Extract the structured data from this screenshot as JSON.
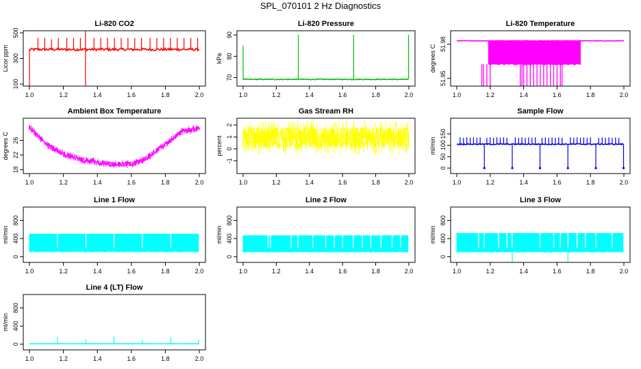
{
  "page": {
    "title": "SPL_070101  2 Hz Diagnostics"
  },
  "colors": {
    "red": "#ff0000",
    "green": "#00bb00",
    "magenta": "#ff00ff",
    "yellow": "#ffff00",
    "blue": "#0000ee",
    "cyan": "#00ffff"
  },
  "chart_data": [
    {
      "type": "line",
      "title": "Li-820 CO2",
      "ylabel": "Licor ppm",
      "color": "#ff0000",
      "xlim": [
        1.0,
        2.0
      ],
      "ylim": [
        100,
        500
      ],
      "yticks": [
        100,
        300,
        500
      ],
      "xticks": [
        "1.0",
        "1.2",
        "1.4",
        "1.6",
        "1.8",
        "2.0"
      ],
      "trend": [
        [
          1.0,
          370
        ],
        [
          2.0,
          370
        ]
      ],
      "noise": 20,
      "band": false,
      "drops": [
        1.0,
        1.33
      ],
      "spikes": [
        [
          1.05,
          460
        ],
        [
          1.09,
          460
        ],
        [
          1.13,
          450
        ],
        [
          1.17,
          460
        ],
        [
          1.22,
          460
        ],
        [
          1.26,
          460
        ],
        [
          1.3,
          460
        ],
        [
          1.33,
          560
        ],
        [
          1.38,
          460
        ],
        [
          1.42,
          460
        ],
        [
          1.46,
          460
        ],
        [
          1.5,
          460
        ],
        [
          1.54,
          460
        ],
        [
          1.58,
          460
        ],
        [
          1.62,
          460
        ],
        [
          1.66,
          460
        ],
        [
          1.71,
          460
        ],
        [
          1.75,
          460
        ],
        [
          1.79,
          460
        ],
        [
          1.83,
          460
        ],
        [
          1.87,
          460
        ],
        [
          1.91,
          460
        ],
        [
          1.95,
          460
        ],
        [
          1.99,
          460
        ]
      ]
    },
    {
      "type": "line",
      "title": "Li-820 Pressure",
      "ylabel": "kPa",
      "color": "#00bb00",
      "xlim": [
        1.0,
        2.0
      ],
      "ylim": [
        67,
        91
      ],
      "yticks": [
        70,
        80,
        90
      ],
      "xticks": [
        "1.0",
        "1.2",
        "1.4",
        "1.6",
        "1.8",
        "2.0"
      ],
      "trend": [
        [
          1.0,
          69.2
        ],
        [
          2.0,
          69.2
        ]
      ],
      "noise": 0.4,
      "band": false,
      "drops": [],
      "spikes": [
        [
          1.0,
          85
        ],
        [
          1.333,
          90
        ],
        [
          1.667,
          90
        ],
        [
          1.998,
          90
        ]
      ]
    },
    {
      "type": "band",
      "title": "Li-820 Temperature",
      "ylabel": "degrees C",
      "color": "#ff00ff",
      "xlim": [
        1.0,
        2.0
      ],
      "ylim": [
        51.945,
        51.99
      ],
      "yticks": [
        51.95,
        51.98
      ],
      "xticks": [
        "1.0",
        "1.2",
        "1.4",
        "1.6",
        "1.8",
        "2.0"
      ],
      "trend": [
        [
          1.0,
          51.983
        ],
        [
          2.0,
          51.983
        ]
      ],
      "noise": 0.0005,
      "band": false,
      "fill": [
        [
          1.19,
          1.74,
          51.9625,
          51.983
        ]
      ],
      "drops": [],
      "spikes": [],
      "lows": [
        1.15,
        1.16,
        1.18,
        1.2,
        1.38,
        1.39,
        1.4,
        1.42,
        1.44,
        1.46,
        1.48,
        1.5,
        1.52,
        1.54,
        1.56,
        1.58,
        1.6,
        1.62,
        1.63
      ]
    },
    {
      "type": "line",
      "title": "Ambient Box Temperature",
      "ylabel": "degrees C",
      "color": "#ff00ff",
      "xlim": [
        1.0,
        2.0
      ],
      "ylim": [
        17.5,
        31.5
      ],
      "yticks": [
        18,
        22,
        26
      ],
      "xticks": [
        "1.0",
        "1.2",
        "1.4",
        "1.6",
        "1.8",
        "2.0"
      ],
      "trend": [
        [
          1.0,
          29.5
        ],
        [
          1.1,
          25.0
        ],
        [
          1.2,
          22.3
        ],
        [
          1.3,
          20.8
        ],
        [
          1.4,
          20.0
        ],
        [
          1.5,
          19.4
        ],
        [
          1.6,
          19.6
        ],
        [
          1.65,
          20.2
        ],
        [
          1.7,
          21.5
        ],
        [
          1.8,
          25.0
        ],
        [
          1.9,
          28.5
        ],
        [
          2.0,
          29.3
        ]
      ],
      "noise": 0.7,
      "band": true,
      "drops": [],
      "spikes": []
    },
    {
      "type": "line",
      "title": "Gas Stream RH",
      "ylabel": "percent",
      "color": "#ffff00",
      "xlim": [
        1.0,
        2.0
      ],
      "ylim": [
        -1.9,
        2.4
      ],
      "yticks": [
        -1,
        0,
        1,
        2
      ],
      "xticks": [
        "1.0",
        "1.2",
        "1.4",
        "1.6",
        "1.8",
        "2.0"
      ],
      "trend": [
        [
          1.0,
          0.95
        ],
        [
          2.0,
          0.95
        ]
      ],
      "noise": 0.9,
      "band": true,
      "drops": [],
      "spikes": []
    },
    {
      "type": "line",
      "title": "Sample Flow",
      "ylabel": "ml/min",
      "color": "#0000ee",
      "xlim": [
        1.0,
        2.0
      ],
      "ylim": [
        -15,
        210
      ],
      "yticks": [
        0,
        50,
        100,
        150
      ],
      "xticks": [
        "1.0",
        "1.2",
        "1.4",
        "1.6",
        "1.8",
        "2.0"
      ],
      "trend": [
        [
          1.0,
          105
        ],
        [
          2.0,
          105
        ]
      ],
      "noise": 5,
      "band": false,
      "drops": [
        1.165,
        1.332,
        1.498,
        1.665,
        1.832,
        1.998
      ],
      "spikes": [
        [
          1.02,
          135
        ],
        [
          1.04,
          133
        ],
        [
          1.06,
          135
        ],
        [
          1.08,
          133
        ],
        [
          1.1,
          135
        ],
        [
          1.12,
          133
        ],
        [
          1.14,
          135
        ],
        [
          1.18,
          133
        ],
        [
          1.2,
          135
        ],
        [
          1.22,
          133
        ],
        [
          1.24,
          135
        ],
        [
          1.26,
          133
        ],
        [
          1.28,
          135
        ],
        [
          1.3,
          133
        ],
        [
          1.35,
          135
        ],
        [
          1.37,
          133
        ],
        [
          1.39,
          135
        ],
        [
          1.41,
          133
        ],
        [
          1.43,
          135
        ],
        [
          1.45,
          133
        ],
        [
          1.47,
          135
        ],
        [
          1.51,
          133
        ],
        [
          1.53,
          135
        ],
        [
          1.55,
          133
        ],
        [
          1.57,
          135
        ],
        [
          1.59,
          133
        ],
        [
          1.61,
          135
        ],
        [
          1.63,
          133
        ],
        [
          1.68,
          135
        ],
        [
          1.7,
          133
        ],
        [
          1.72,
          135
        ],
        [
          1.74,
          133
        ],
        [
          1.76,
          135
        ],
        [
          1.78,
          133
        ],
        [
          1.8,
          135
        ],
        [
          1.85,
          133
        ],
        [
          1.87,
          135
        ],
        [
          1.89,
          133
        ],
        [
          1.91,
          135
        ],
        [
          1.93,
          133
        ],
        [
          1.95,
          135
        ],
        [
          1.97,
          133
        ]
      ]
    },
    {
      "type": "band",
      "title": "Line 1 Flow",
      "ylabel": "ml/min",
      "color": "#00ffff",
      "xlim": [
        1.0,
        2.0
      ],
      "ylim": [
        -80,
        1050
      ],
      "yticks": [
        0,
        400,
        800
      ],
      "xticks": [
        "1.0",
        "1.2",
        "1.4",
        "1.6",
        "1.8",
        "2.0"
      ],
      "trend": [],
      "noise": 0,
      "band": false,
      "fill": [
        [
          1.0,
          1.995,
          110,
          505
        ]
      ],
      "gaps": [
        1.165,
        1.332,
        1.498,
        1.665,
        1.832
      ],
      "drops": [],
      "spikes": []
    },
    {
      "type": "band",
      "title": "Line 2 Flow",
      "ylabel": "ml/min",
      "color": "#00ffff",
      "xlim": [
        1.0,
        2.0
      ],
      "ylim": [
        -80,
        1050
      ],
      "yticks": [
        0,
        400,
        800
      ],
      "xticks": [
        "1.0",
        "1.2",
        "1.4",
        "1.6",
        "1.8",
        "2.0"
      ],
      "trend": [],
      "noise": 0,
      "band": false,
      "fill": [
        [
          1.0,
          1.995,
          105,
          470
        ]
      ],
      "gaps": [
        1.15,
        1.165,
        1.29,
        1.332,
        1.42,
        1.498,
        1.55,
        1.6,
        1.665,
        1.72,
        1.77,
        1.832,
        1.9,
        1.95
      ],
      "drops": [],
      "spikes": []
    },
    {
      "type": "band",
      "title": "Line 3 Flow",
      "ylabel": "ml/min",
      "color": "#00ffff",
      "xlim": [
        1.0,
        2.0
      ],
      "ylim": [
        -80,
        1050
      ],
      "yticks": [
        0,
        400,
        800
      ],
      "xticks": [
        "1.0",
        "1.2",
        "1.4",
        "1.6",
        "1.8",
        "2.0"
      ],
      "trend": [],
      "noise": 0,
      "band": false,
      "fill": [
        [
          1.0,
          1.995,
          105,
          520
        ]
      ],
      "gaps": [
        1.13,
        1.165,
        1.25,
        1.3,
        1.332,
        1.498,
        1.58,
        1.62,
        1.665,
        1.72,
        1.77,
        1.832,
        1.93
      ],
      "drops": [
        1.332,
        1.665
      ],
      "spikes": []
    },
    {
      "type": "line",
      "title": "Line 4 (LT) Flow",
      "ylabel": "ml/min",
      "color": "#00ffff",
      "xlim": [
        1.0,
        2.0
      ],
      "ylim": [
        -80,
        1050
      ],
      "yticks": [
        0,
        400,
        800
      ],
      "xticks": [
        "1.0",
        "1.2",
        "1.4",
        "1.6",
        "1.8",
        "2.0"
      ],
      "trend": [
        [
          1.0,
          10
        ],
        [
          2.0,
          10
        ]
      ],
      "noise": 2,
      "band": false,
      "drops": [],
      "spikes": [
        [
          1.165,
          160
        ],
        [
          1.332,
          110
        ],
        [
          1.498,
          170
        ],
        [
          1.665,
          100
        ],
        [
          1.832,
          160
        ],
        [
          1.995,
          100
        ]
      ]
    }
  ]
}
